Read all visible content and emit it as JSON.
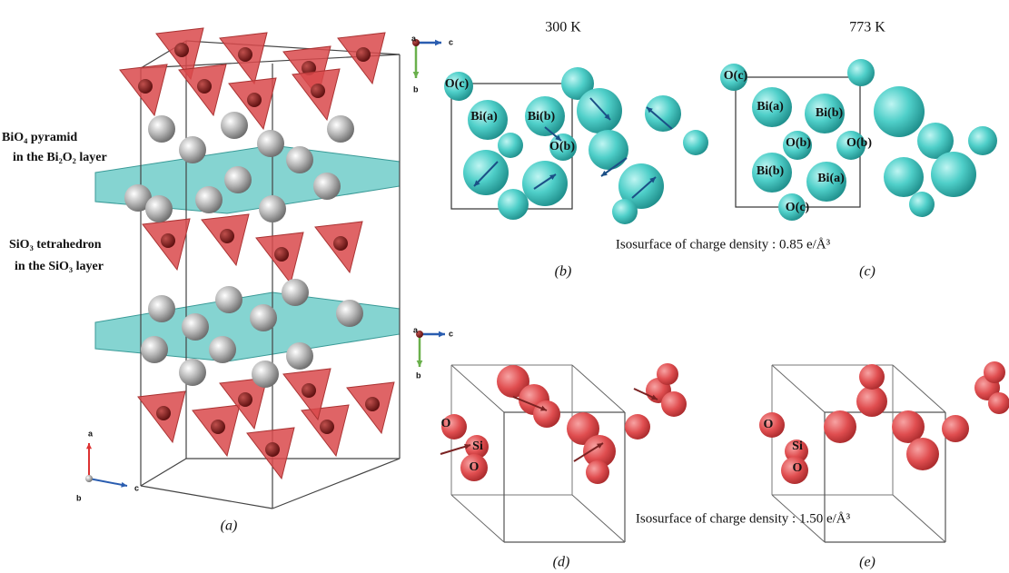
{
  "panel_a": {
    "annotations": [
      "BiO₄ pyramid",
      "in the Bi₂O₂ layer",
      "SiO₃ tetrahedron",
      "in the SiO₃ layer"
    ],
    "axes": [
      "a",
      "b",
      "c"
    ],
    "caption": "(a)"
  },
  "panel_b": {
    "temperature": "300 K",
    "axes": [
      "a",
      "c",
      "b"
    ],
    "atom_labels": [
      "O(c)",
      "Bi(a)",
      "Bi(b)",
      "O(b)"
    ],
    "caption": "(b)"
  },
  "panel_c": {
    "temperature": "773 K",
    "atom_labels": [
      "O(c)",
      "Bi(a)",
      "Bi(b)",
      "O(b)",
      "O(b)",
      "Bi(b)",
      "Bi(a)",
      "O(c)"
    ],
    "caption": "(c)"
  },
  "isosurface_top": "Isosurface of charge density : 0.85 e/Å³",
  "panel_d": {
    "axes": [
      "a",
      "c",
      "b"
    ],
    "atom_labels": [
      "O",
      "Si",
      "O"
    ],
    "caption": "(d)"
  },
  "panel_e": {
    "atom_labels": [
      "O",
      "Si",
      "O"
    ],
    "caption": "(e)"
  },
  "isosurface_bottom": "Isosurface of charge density : 1.50 e/Å³"
}
